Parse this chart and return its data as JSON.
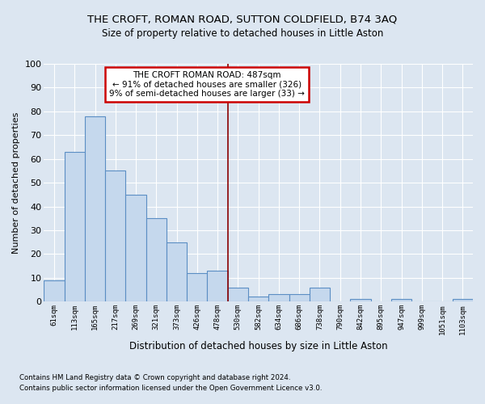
{
  "title": "THE CROFT, ROMAN ROAD, SUTTON COLDFIELD, B74 3AQ",
  "subtitle": "Size of property relative to detached houses in Little Aston",
  "xlabel": "Distribution of detached houses by size in Little Aston",
  "ylabel": "Number of detached properties",
  "footnote1": "Contains HM Land Registry data © Crown copyright and database right 2024.",
  "footnote2": "Contains public sector information licensed under the Open Government Licence v3.0.",
  "bin_labels": [
    "61sqm",
    "113sqm",
    "165sqm",
    "217sqm",
    "269sqm",
    "321sqm",
    "373sqm",
    "426sqm",
    "478sqm",
    "530sqm",
    "582sqm",
    "634sqm",
    "686sqm",
    "738sqm",
    "790sqm",
    "842sqm",
    "895sqm",
    "947sqm",
    "999sqm",
    "1051sqm",
    "1103sqm"
  ],
  "bar_values": [
    9,
    63,
    78,
    55,
    45,
    35,
    25,
    12,
    13,
    6,
    2,
    3,
    3,
    6,
    0,
    1,
    0,
    1,
    0,
    0,
    1
  ],
  "bar_color": "#c5d8ed",
  "bar_edge_color": "#5b8ec4",
  "background_color": "#dce6f1",
  "plot_bg_color": "#dce6f1",
  "grid_color": "#ffffff",
  "vline_x_index": 8,
  "vline_color": "#8b0000",
  "annotation_text": "THE CROFT ROMAN ROAD: 487sqm\n← 91% of detached houses are smaller (326)\n9% of semi-detached houses are larger (33) →",
  "annotation_box_color": "#ffffff",
  "annotation_edge_color": "#cc0000",
  "ylim": [
    0,
    100
  ],
  "yticks": [
    0,
    10,
    20,
    30,
    40,
    50,
    60,
    70,
    80,
    90,
    100
  ]
}
